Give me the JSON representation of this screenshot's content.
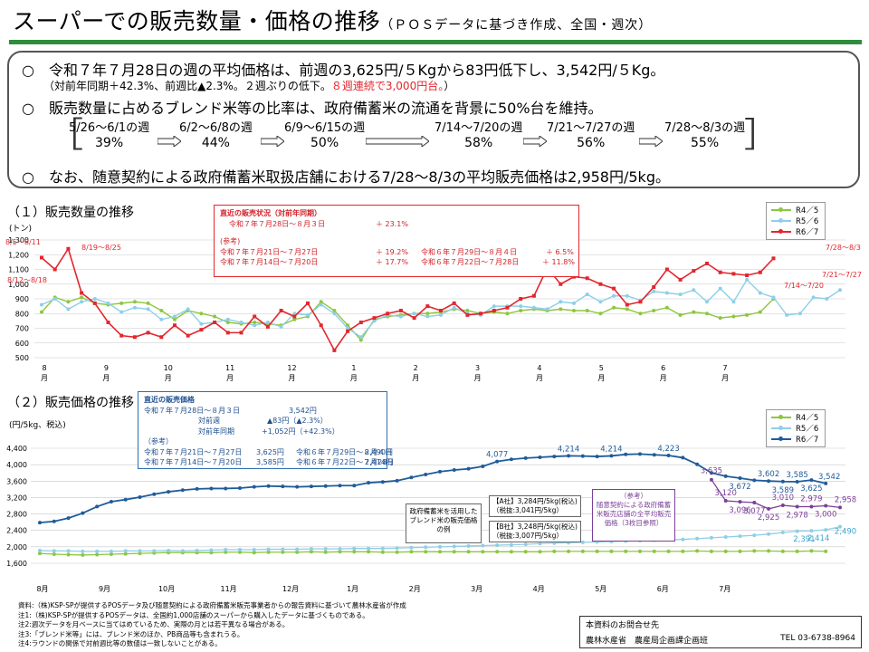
{
  "header": {
    "title": "スーパーでの販売数量・価格の推移",
    "subtitle": "（ＰＯＳデータに基づき作成、全国・週次）"
  },
  "summary": {
    "bullet": "○",
    "line1": "令和７年７月28日の週の平均価格は、前週の3,625円/５Kgから83円低下し、3,542円/５Kg。",
    "line1b_black": "（対前年同期＋42.3%、前週比▲2.3%。２週ぶりの低下。",
    "line1b_red": "８週連続で3,000円台。",
    "line1b_end": "）",
    "line2": "販売数量に占めるブレンド米等の比率は、政府備蓄米の流通を背景に50%台を維持。",
    "line3": "なお、随意契約による政府備蓄米取扱店舗における7/28～8/3の平均販売価格は2,958円/5kg。",
    "bracket_open": "［",
    "bracket_close": "］",
    "ratios": [
      {
        "period": "5/26～6/1の週",
        "pct": "39%"
      },
      {
        "period": "6/2～6/8の週",
        "pct": "44%"
      },
      {
        "period": "6/9～6/15の週",
        "pct": "50%"
      },
      {
        "period": "7/14～7/20の週",
        "pct": "58%"
      },
      {
        "period": "7/21～7/27の週",
        "pct": "56%"
      },
      {
        "period": "7/28～8/3の週",
        "pct": "55%"
      }
    ]
  },
  "section1": {
    "heading": "（１）販売数量の推移",
    "unit": "(トン)"
  },
  "section2": {
    "heading": "（２）販売価格の推移",
    "unit": "(円/5kg、税込)"
  },
  "box1": {
    "title": "直近の販売状況（対前年同期）",
    "r1l": "令和７年７月28日～８月３日",
    "r1v": "＋ 23.1%",
    "ref": "(参考)",
    "r2l": "令和７年７月21日～７月27日",
    "r2v": "＋ 19.2%",
    "r2l2": "令和６年７月29日～８月４日",
    "r2v2": "＋ 6.5%",
    "r3l": "令和７年７月14日～７月20日",
    "r3v": "＋ 17.7%",
    "r3l2": "令和６年７月22日～７月28日",
    "r3v2": "＋ 11.8%"
  },
  "box2": {
    "title": "直近の販売価格",
    "r1l": "令和７年７月28日～８月３日",
    "r1v": "3,542円",
    "r2l": "対前週",
    "r2v": "▲83円（▲2.3%）",
    "r3l": "対前年同期",
    "r3v": "+1,052円（+42.3%）",
    "ref": "（参考）",
    "r4l": "令和７年７月21日～７月27日",
    "r4v": "3,625円",
    "r4l2": "令和６年７月29日～８月４日",
    "r4v2": "2,490円",
    "r5l": "令和７年７月14日～７月20日",
    "r5v": "3,585円",
    "r5l2": "令和６年７月22日～７月28日",
    "r5v2": "2,414円"
  },
  "inset": {
    "label": "政府備蓄米を活用したブレンド米の販売価格の例",
    "a1": "【A社】3,284円/5kg(税込)",
    "a2": "（税抜:3,041円/5kg）",
    "b1": "【B社】3,248円/5kg(税込)",
    "b2": "（税抜:3,007円/5kg）",
    "p1": "（参考）",
    "p2": "随意契約による政府備蓄米販売店舗の全平均販売価格（3枚目参照）"
  },
  "notes": [
    "資料:（株)KSP-SPが提供するPOSデータ及び随意契約による政府備蓄米販売事業者からの報告資料に基づいて農林水産省が作成",
    "注1:（株)KSP-SPが提供するPOSデータは、全国約1,000店舗のスーパーから購入したデータに基づくものである。",
    "注2:週次データを月ベースに当てはめているため、実際の月とは若干異なる場合がある。",
    "注3:「ブレンド米等」には、ブレンド米のほか、PB商品等も含まれうる。",
    "注4:ラウンドの関係で対前週比等の数値は一致しないことがある。"
  ],
  "contact": {
    "title": "本資料のお問合せ先",
    "org": "農林水産省　農産局企画課企画班",
    "tel": "TEL 03-6738-8964"
  },
  "colors": {
    "r4": "#8dc63f",
    "r5": "#8ecfe8",
    "r6_qty": "#e3262e",
    "r6_price": "#1f5c99",
    "govt": "#7b3f98",
    "title_rule": "#2f8c3c"
  },
  "chart_data": [
    {
      "type": "line",
      "title": "販売数量の推移",
      "ylabel": "(トン)",
      "ylim": [
        500,
        1300
      ],
      "yticks": [
        500,
        600,
        700,
        800,
        900,
        1000,
        1100,
        1200,
        1300
      ],
      "month_labels": [
        "8",
        "9",
        "10",
        "11",
        "12",
        "1",
        "2",
        "3",
        "4",
        "5",
        "6",
        "7"
      ],
      "month_unit": "月",
      "legend": [
        "R4／5",
        "R5／6",
        "R6／7"
      ],
      "annotations": [
        "8/5～8/11",
        "8/12～8/18",
        "8/19～8/25",
        "7/28～8/3",
        "7/21～7/27",
        "7/14～7/20"
      ],
      "series": [
        {
          "name": "R4／5",
          "values": [
            810,
            910,
            880,
            910,
            870,
            860,
            870,
            880,
            870,
            820,
            760,
            820,
            800,
            780,
            740,
            730,
            740,
            730,
            720,
            760,
            780,
            880,
            820,
            720,
            620,
            760,
            780,
            790,
            800,
            800,
            810,
            830,
            820,
            800,
            810,
            800,
            820,
            830,
            820,
            830,
            820,
            820,
            800,
            840,
            830,
            800,
            820,
            840,
            790,
            810,
            800,
            770,
            780,
            790,
            810,
            900
          ]
        },
        {
          "name": "R5／6",
          "values": [
            860,
            900,
            830,
            880,
            900,
            870,
            810,
            840,
            830,
            760,
            780,
            830,
            730,
            740,
            760,
            740,
            720,
            740,
            710,
            800,
            790,
            860,
            800,
            700,
            640,
            750,
            790,
            780,
            800,
            780,
            790,
            840,
            800,
            790,
            850,
            850,
            850,
            840,
            830,
            880,
            870,
            930,
            880,
            920,
            920,
            890,
            950,
            940,
            930,
            960,
            880,
            970,
            880,
            1030,
            940,
            910,
            790,
            800,
            910,
            900,
            960
          ]
        },
        {
          "name": "R6／7",
          "values": [
            1180,
            1100,
            1240,
            940,
            870,
            740,
            650,
            640,
            670,
            640,
            720,
            650,
            690,
            740,
            670,
            670,
            780,
            710,
            820,
            780,
            870,
            720,
            550,
            680,
            740,
            770,
            800,
            820,
            770,
            850,
            820,
            870,
            790,
            800,
            820,
            840,
            900,
            920,
            1110,
            1000,
            1050,
            1040,
            1000,
            970,
            860,
            880,
            980,
            1100,
            1030,
            1090,
            1140,
            1080,
            1070,
            1060,
            1080,
            1175
          ]
        }
      ]
    },
    {
      "type": "line",
      "title": "販売価格の推移",
      "ylabel": "(円/5kg、税込)",
      "ylim": [
        1600,
        4400
      ],
      "yticks": [
        1600,
        2000,
        2400,
        2800,
        3200,
        3600,
        4000,
        4400
      ],
      "month_labels": [
        "8",
        "9",
        "10",
        "11",
        "12",
        "1",
        "2",
        "3",
        "4",
        "5",
        "6",
        "7"
      ],
      "month_unit": "月",
      "legend": [
        "R4／5",
        "R5／6",
        "R6／7"
      ],
      "series": [
        {
          "name": "R4／5",
          "values": [
            1840,
            1820,
            1810,
            1800,
            1810,
            1820,
            1830,
            1840,
            1850,
            1860,
            1860,
            1860,
            1860,
            1870,
            1870,
            1860,
            1870,
            1870,
            1870,
            1880,
            1870,
            1880,
            1880,
            1880,
            1870,
            1870,
            1880,
            1880,
            1880,
            1880,
            1880,
            1880,
            1880,
            1880,
            1880,
            1880,
            1890,
            1890,
            1890,
            1890,
            1890,
            1890,
            1890,
            1890,
            1890,
            1890,
            1900,
            1890,
            1890,
            1890,
            1900,
            1900,
            1890,
            1890,
            1900,
            1890
          ]
        },
        {
          "name": "R5／6",
          "values": [
            1910,
            1900,
            1900,
            1890,
            1890,
            1890,
            1900,
            1900,
            1900,
            1910,
            1900,
            1910,
            1920,
            1930,
            1930,
            1930,
            1940,
            1940,
            1940,
            1950,
            1950,
            1950,
            1960,
            1960,
            1960,
            1970,
            1980,
            1990,
            2000,
            2010,
            2020,
            2030,
            2040,
            2050,
            2060,
            2080,
            2090,
            2100,
            2110,
            2120,
            2130,
            2140,
            2150,
            2160,
            2170,
            2180,
            2200,
            2220,
            2240,
            2260,
            2280,
            2310,
            2350,
            2380,
            2391,
            2414,
            2490
          ]
        },
        {
          "name": "R6／7",
          "values": [
            2590,
            2620,
            2700,
            2820,
            2980,
            3100,
            3150,
            3210,
            3280,
            3340,
            3380,
            3410,
            3420,
            3420,
            3430,
            3460,
            3480,
            3470,
            3460,
            3470,
            3480,
            3490,
            3490,
            3560,
            3580,
            3610,
            3690,
            3760,
            3830,
            3870,
            3900,
            3960,
            4077,
            4130,
            4160,
            4180,
            4200,
            4214,
            4210,
            4200,
            4214,
            4250,
            4260,
            4240,
            4223,
            4170,
            4010,
            3800,
            3720,
            3672,
            3620,
            3602,
            3589,
            3585,
            3625,
            3542
          ]
        },
        {
          "name": "随意契約による政府備蓄米販売店舗",
          "values": [
            3635,
            3120,
            3096,
            3077,
            2925,
            3010,
            2978,
            2979,
            3000,
            2958
          ]
        }
      ],
      "point_labels": {
        "R6／7": [
          "4,077",
          "4,214",
          "4,214",
          "4,223",
          "3,672",
          "3,602",
          "3,589",
          "3,585",
          "3,625",
          "3,542"
        ],
        "R5／6": [
          "2,391",
          "2,414",
          "2,490"
        ],
        "随意契約による政府備蓄米販売店舗": [
          "3,635",
          "3,120",
          "3,096",
          "3,077",
          "2,925",
          "3,010",
          "2,978",
          "2,979",
          "3,000",
          "2,958"
        ]
      }
    }
  ]
}
